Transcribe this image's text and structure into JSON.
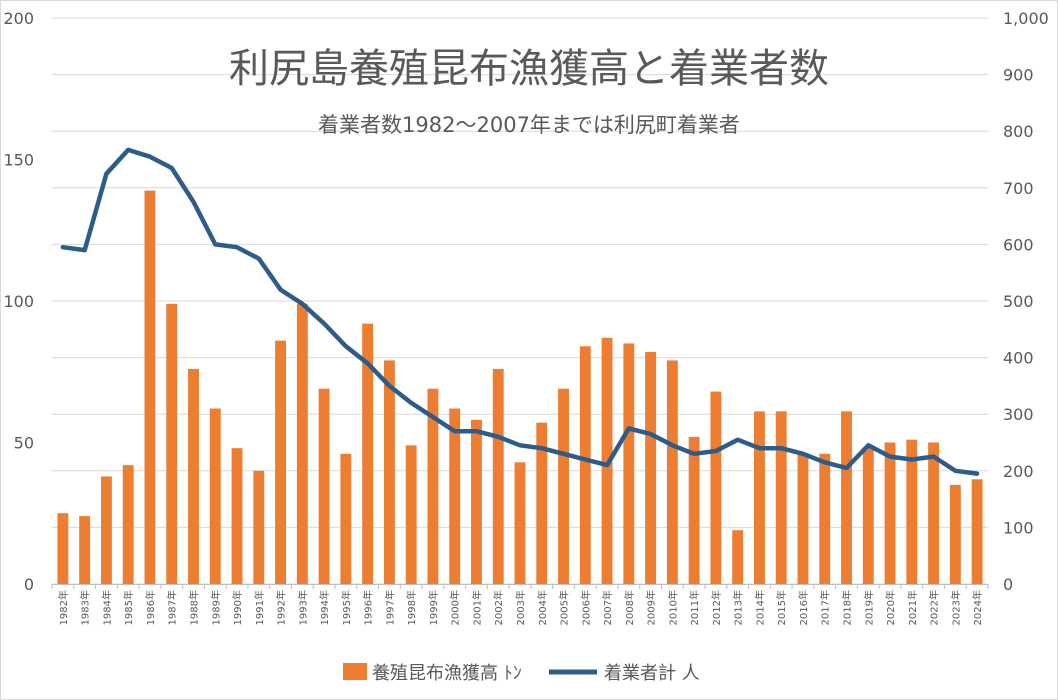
{
  "chart_data": {
    "type": "bar+line",
    "title": "利尻島養殖昆布漁獲高と着業者数",
    "subtitle": "着業者数1982～2007年までは利尻町着業者",
    "categories": [
      "1982年",
      "1983年",
      "1984年",
      "1985年",
      "1986年",
      "1987年",
      "1988年",
      "1989年",
      "1990年",
      "1991年",
      "1992年",
      "1993年",
      "1994年",
      "1995年",
      "1996年",
      "1997年",
      "1998年",
      "1999年",
      "2000年",
      "2001年",
      "2002年",
      "2003年",
      "2004年",
      "2005年",
      "2006年",
      "2007年",
      "2008年",
      "2009年",
      "2010年",
      "2011年",
      "2012年",
      "2013年",
      "2014年",
      "2015年",
      "2016年",
      "2017年",
      "2018年",
      "2019年",
      "2020年",
      "2021年",
      "2022年",
      "2023年",
      "2024年"
    ],
    "y_left": {
      "min": 0,
      "max": 200,
      "ticks": [
        "0",
        "50",
        "100",
        "150",
        "200"
      ]
    },
    "y_right": {
      "min": 0,
      "max": 1000,
      "ticks": [
        "0",
        "100",
        "200",
        "300",
        "400",
        "500",
        "600",
        "700",
        "800",
        "900",
        "1,000"
      ]
    },
    "grid": true,
    "legend_position": "bottom",
    "series": [
      {
        "name": "養殖昆布漁獲高 ﾄﾝ",
        "type": "bar",
        "axis": "left",
        "color": "#ED7D31",
        "values": [
          25,
          24,
          38,
          42,
          139,
          99,
          76,
          62,
          48,
          40,
          86,
          99,
          69,
          46,
          92,
          79,
          49,
          69,
          62,
          58,
          76,
          43,
          57,
          69,
          84,
          87,
          85,
          82,
          79,
          52,
          68,
          19,
          61,
          61,
          46,
          46,
          61,
          48,
          50,
          51,
          50,
          35,
          37
        ]
      },
      {
        "name": "着業者計 人",
        "type": "line",
        "axis": "right",
        "color": "#2E5C8A",
        "values": [
          595,
          590,
          725,
          767,
          755,
          735,
          675,
          600,
          595,
          575,
          520,
          495,
          460,
          420,
          390,
          350,
          320,
          295,
          270,
          270,
          260,
          245,
          240,
          230,
          220,
          210,
          275,
          265,
          245,
          230,
          235,
          255,
          240,
          240,
          230,
          215,
          205,
          245,
          225,
          220,
          225,
          200,
          195
        ]
      }
    ]
  }
}
